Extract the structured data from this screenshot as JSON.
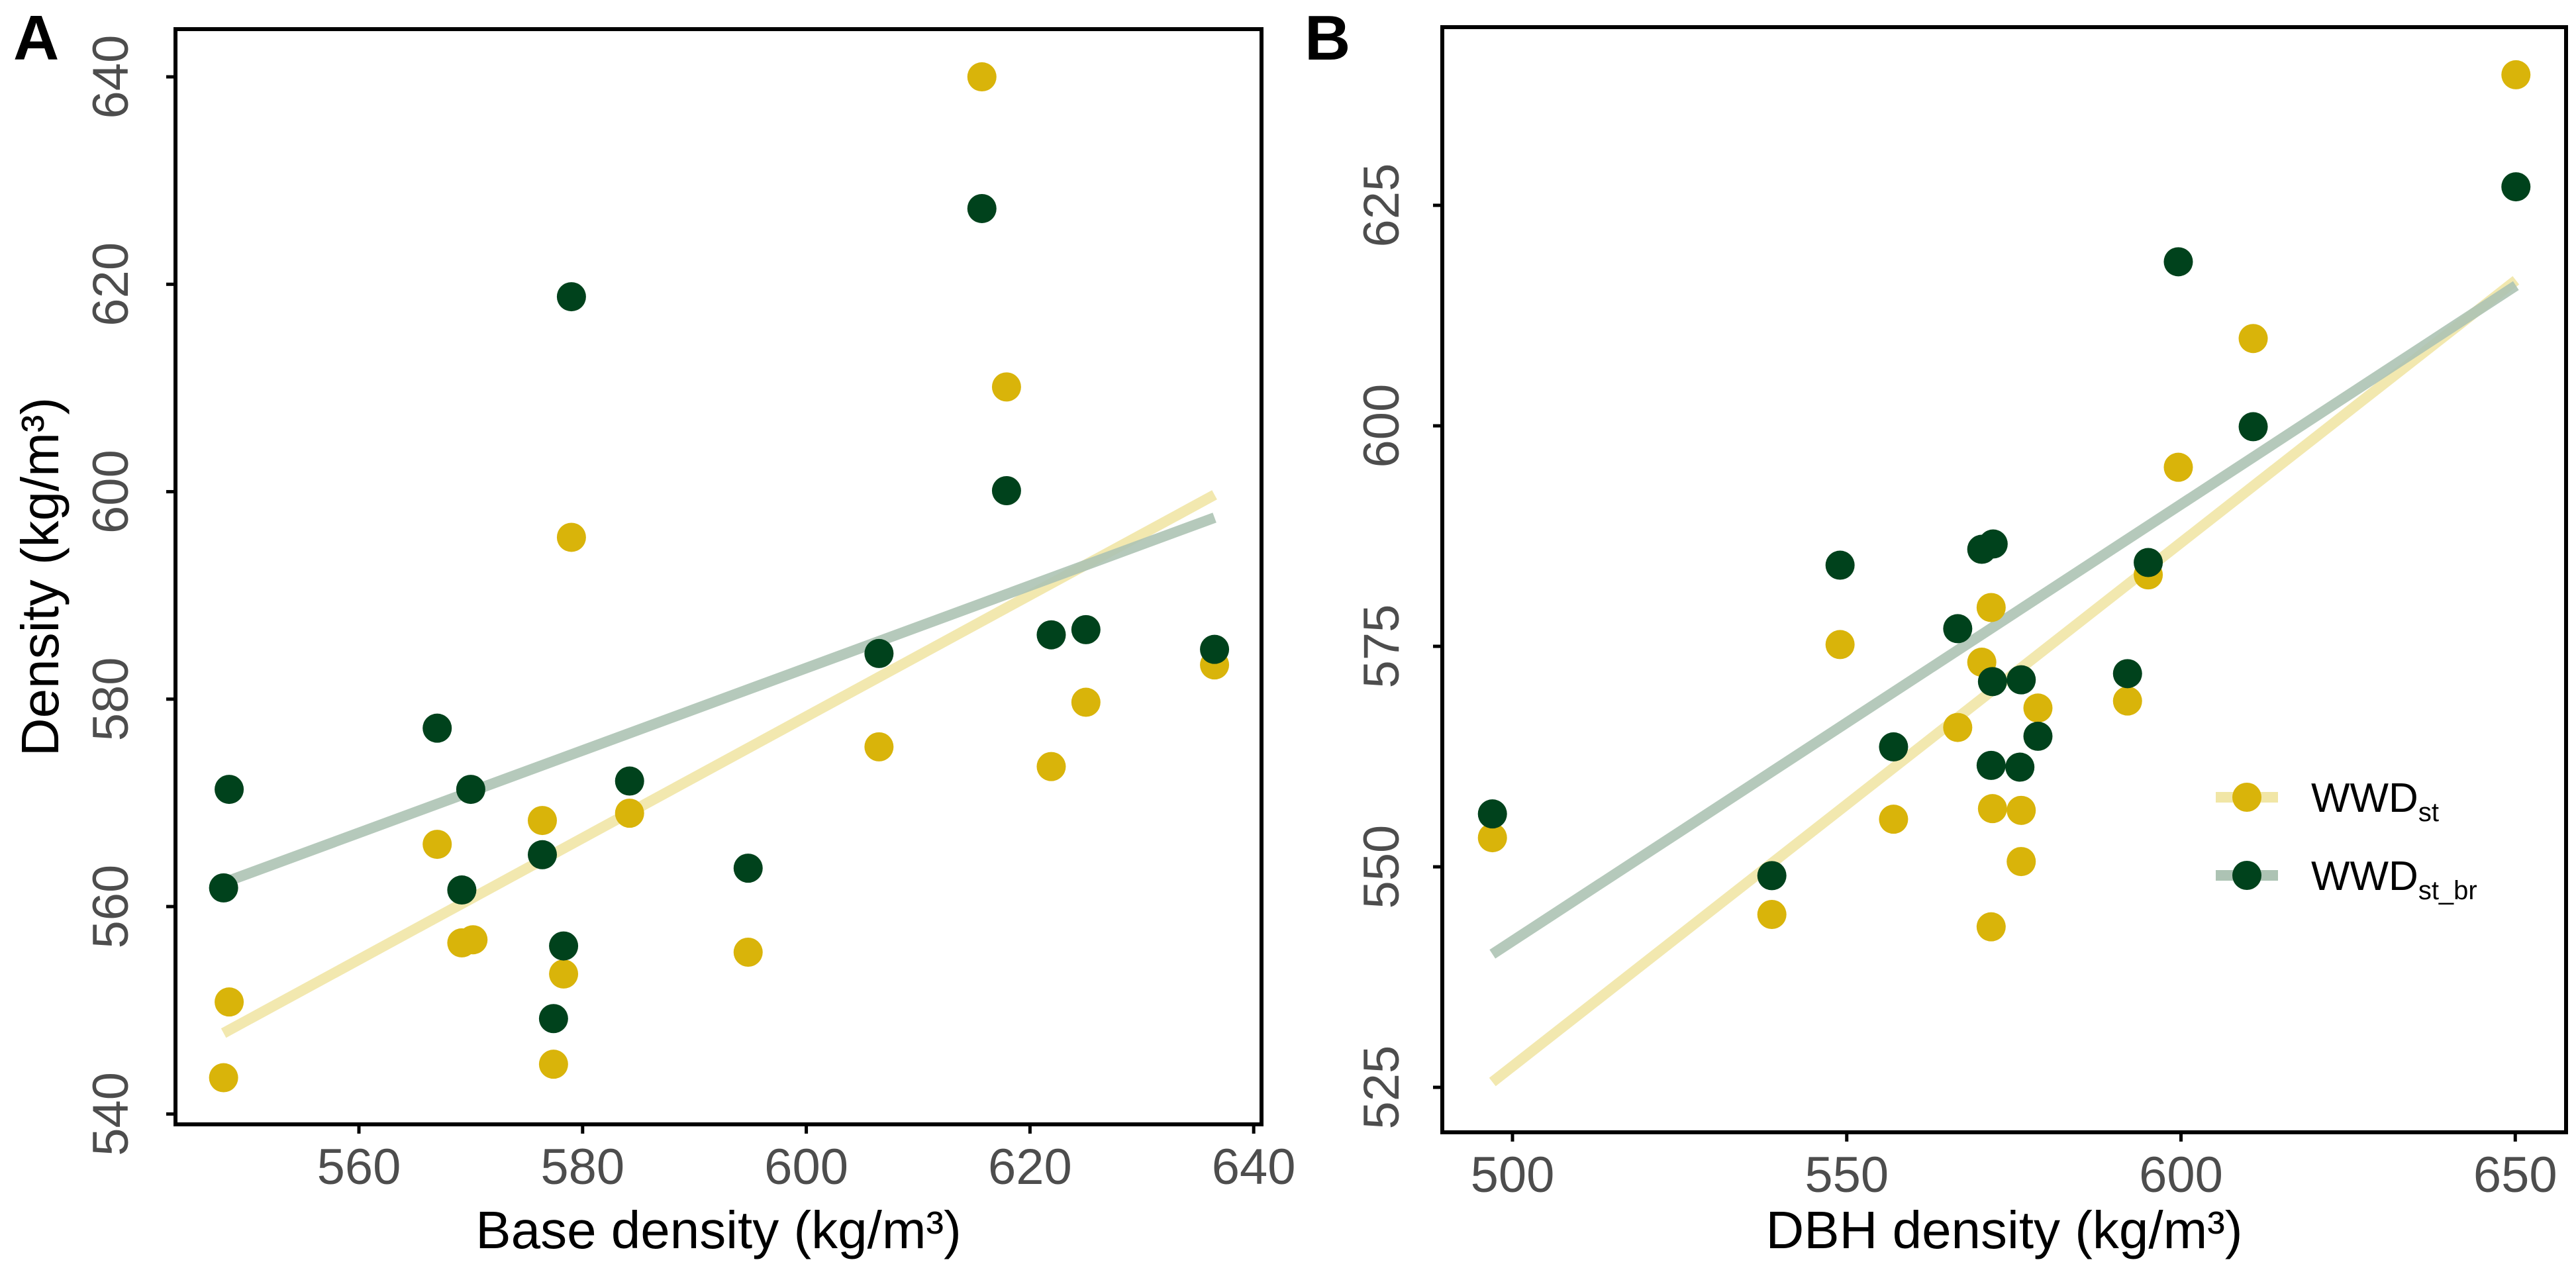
{
  "colors": {
    "WWD_st_point": "#d9b40a",
    "WWD_st_line": "#f1e6a6",
    "WWD_st_br_point": "#00421c",
    "WWD_st_br_line": "#adc3b4",
    "axis": "#000000",
    "tick_text": "#4d4d4d"
  },
  "chart_data": [
    {
      "type": "scatter",
      "panel_label": "A",
      "xlabel": "Base density (kg/m³)",
      "ylabel": "Density  (kg/m³)",
      "xlim": [
        543.6,
        640.7
      ],
      "ylim": [
        539.0,
        644.6
      ],
      "xticks": [
        560,
        580,
        600,
        620,
        640
      ],
      "yticks": [
        540,
        560,
        580,
        600,
        620,
        640
      ],
      "grid": false,
      "series": [
        {
          "name": "WWD",
          "sub": "st",
          "points": [
            [
              615.7,
              640.0
            ],
            [
              617.9,
              610.1
            ],
            [
              579.0,
              595.6
            ],
            [
              606.5,
              575.4
            ],
            [
              625.0,
              579.7
            ],
            [
              621.9,
              573.5
            ],
            [
              636.5,
              583.3
            ],
            [
              576.4,
              568.3
            ],
            [
              567.0,
              566.0
            ],
            [
              584.2,
              569.0
            ],
            [
              569.2,
              556.5
            ],
            [
              570.2,
              556.8
            ],
            [
              578.3,
              553.5
            ],
            [
              594.8,
              555.6
            ],
            [
              548.4,
              550.8
            ],
            [
              547.9,
              543.5
            ],
            [
              577.4,
              544.8
            ]
          ],
          "fit": [
            [
              547.9,
              547.8
            ],
            [
              636.5,
              599.7
            ]
          ]
        },
        {
          "name": "WWD",
          "sub": "st_br",
          "points": [
            [
              615.7,
              627.3
            ],
            [
              579.0,
              618.8
            ],
            [
              617.9,
              600.1
            ],
            [
              606.5,
              584.4
            ],
            [
              621.9,
              586.2
            ],
            [
              625.0,
              586.7
            ],
            [
              636.5,
              584.8
            ],
            [
              567.0,
              577.2
            ],
            [
              548.4,
              571.3
            ],
            [
              570.0,
              571.3
            ],
            [
              584.2,
              572.1
            ],
            [
              576.4,
              565.0
            ],
            [
              594.8,
              563.7
            ],
            [
              547.9,
              561.8
            ],
            [
              569.2,
              561.6
            ],
            [
              578.3,
              556.2
            ],
            [
              577.4,
              549.2
            ]
          ],
          "fit": [
            [
              547.9,
              562.3
            ],
            [
              636.5,
              597.5
            ]
          ]
        }
      ]
    },
    {
      "type": "scatter",
      "panel_label": "B",
      "xlabel": "DBH density (kg/m³)",
      "ylabel": "",
      "xlim": [
        489.5,
        657.6
      ],
      "ylim": [
        519.9,
        645.2
      ],
      "xticks": [
        500,
        550,
        600,
        650
      ],
      "yticks": [
        525,
        550,
        575,
        600,
        625
      ],
      "grid": false,
      "legend": "right",
      "series": [
        {
          "name": "WWD",
          "sub": "st",
          "points": [
            [
              650.1,
              639.8
            ],
            [
              610.8,
              609.9
            ],
            [
              599.6,
              595.3
            ],
            [
              595.1,
              583.1
            ],
            [
              571.6,
              579.4
            ],
            [
              549.0,
              575.2
            ],
            [
              570.2,
              573.2
            ],
            [
              566.6,
              565.8
            ],
            [
              578.6,
              568.0
            ],
            [
              592.0,
              568.8
            ],
            [
              557.0,
              555.4
            ],
            [
              571.8,
              556.6
            ],
            [
              576.1,
              556.4
            ],
            [
              576.1,
              550.6
            ],
            [
              497.0,
              553.3
            ],
            [
              538.8,
              544.6
            ],
            [
              571.6,
              543.2
            ]
          ],
          "fit": [
            [
              497.0,
              525.6
            ],
            [
              650.1,
              616.5
            ]
          ]
        },
        {
          "name": "WWD",
          "sub": "st_br",
          "points": [
            [
              650.1,
              627.1
            ],
            [
              599.6,
              618.6
            ],
            [
              610.8,
              599.9
            ],
            [
              549.0,
              584.2
            ],
            [
              570.2,
              586.0
            ],
            [
              571.9,
              586.6
            ],
            [
              595.1,
              584.5
            ],
            [
              566.6,
              577.0
            ],
            [
              571.8,
              571.0
            ],
            [
              576.1,
              571.2
            ],
            [
              592.0,
              571.9
            ],
            [
              578.6,
              564.8
            ],
            [
              557.0,
              563.6
            ],
            [
              571.6,
              561.5
            ],
            [
              575.9,
              561.3
            ],
            [
              497.0,
              556.0
            ],
            [
              538.8,
              549.0
            ]
          ],
          "fit": [
            [
              497.0,
              540.1
            ],
            [
              650.1,
              615.9
            ]
          ]
        }
      ]
    }
  ]
}
